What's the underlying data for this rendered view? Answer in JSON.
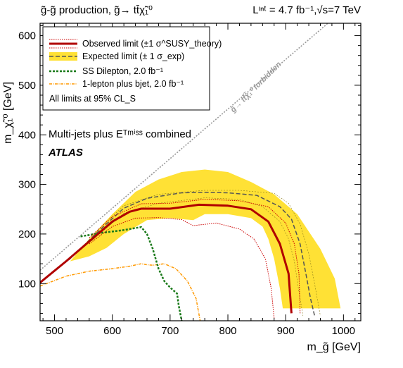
{
  "header": {
    "process": "g̃-g̃ production, g̃→ tt̄χ̃₁⁰",
    "lumi": "Lᶦⁿᵗ = 4.7 fb⁻¹,√s=7 TeV"
  },
  "chart_data": {
    "type": "line",
    "xlabel": "m_g̃ [GeV]",
    "ylabel": "m_χ̃₁⁰ [GeV]",
    "xlim": [
      475,
      1030
    ],
    "ylim": [
      25,
      625
    ],
    "x_ticks": [
      500,
      600,
      700,
      800,
      900,
      1000
    ],
    "y_ticks": [
      100,
      200,
      300,
      400,
      500,
      600
    ],
    "annotations": {
      "analysis": "Multi-jets plus Eᵀᵐⁱˢˢ combined",
      "experiment": "ATLAS",
      "forbidden_label": "g̃→ tt̄χ̃₁⁰ forbidden"
    },
    "legend": {
      "placement": "top-left",
      "entries": [
        {
          "label": "Observed limit (±1 σ^SUSY_theory)",
          "style": "observed"
        },
        {
          "label": "Expected limit (± 1 σ_exp)",
          "style": "expected"
        },
        {
          "label": "SS Dilepton, 2.0 fb⁻¹",
          "style": "ssdilepton"
        },
        {
          "label": "1-lepton plus bjet, 2.0 fb⁻¹",
          "style": "onelepton"
        },
        {
          "label": "All limits at 95% CL_S",
          "style": "none"
        }
      ]
    },
    "forbidden_line": {
      "x": [
        475,
        1030
      ],
      "y": [
        127,
        682
      ]
    },
    "band_upper": {
      "x": [
        527,
        560,
        600,
        640,
        680,
        720,
        760,
        800,
        840,
        880,
        920,
        960,
        985,
        995
      ],
      "y": [
        145,
        190,
        240,
        285,
        310,
        325,
        330,
        325,
        305,
        280,
        240,
        170,
        110,
        50
      ]
    },
    "band_lower": {
      "x": [
        895,
        890,
        880,
        870,
        860,
        840,
        800,
        760,
        740,
        700,
        660,
        620,
        590,
        560
      ],
      "y": [
        50,
        90,
        150,
        190,
        215,
        232,
        240,
        240,
        228,
        232,
        228,
        200,
        172,
        155
      ]
    },
    "series": [
      {
        "name": "Observed limit (±1 σ^SUSY_theory)",
        "style": "observed",
        "x": [
          475,
          520,
          560,
          600,
          630,
          650,
          700,
          750,
          800,
          840,
          870,
          890,
          905,
          910
        ],
        "y": [
          102,
          145,
          185,
          225,
          245,
          251,
          251,
          259,
          257,
          250,
          225,
          180,
          120,
          40
        ]
      },
      {
        "name": "Observed +1σ",
        "style": "obs_theory",
        "x": [
          560,
          600,
          650,
          700,
          760,
          820,
          870,
          900,
          915,
          923,
          925
        ],
        "y": [
          192,
          235,
          261,
          262,
          270,
          267,
          255,
          222,
          180,
          120,
          40
        ]
      },
      {
        "name": "Observed -1σ",
        "style": "obs_theory",
        "x": [
          560,
          600,
          640,
          680,
          720,
          740,
          780,
          820,
          845,
          865,
          875,
          880
        ],
        "y": [
          180,
          215,
          232,
          233,
          229,
          217,
          222,
          210,
          190,
          150,
          90,
          30
        ]
      },
      {
        "name": "Expected limit (± 1 σ_exp)",
        "style": "expected",
        "x": [
          525,
          580,
          620,
          660,
          720,
          760,
          800,
          850,
          890,
          910,
          925,
          935,
          943,
          950
        ],
        "y": [
          148,
          210,
          252,
          272,
          283,
          284,
          283,
          278,
          255,
          230,
          180,
          120,
          70,
          35
        ]
      },
      {
        "name": "Expected -1σ",
        "style": "exp_band",
        "x": [
          560,
          620,
          680,
          760,
          820,
          860,
          890,
          905,
          915,
          922,
          930
        ],
        "y": [
          182,
          242,
          262,
          273,
          270,
          255,
          225,
          190,
          145,
          90,
          35
        ]
      },
      {
        "name": "Expected +1σ",
        "style": "exp_band",
        "x": [
          560,
          620,
          680,
          760,
          820,
          880,
          905,
          925,
          940,
          950,
          960
        ],
        "y": [
          192,
          257,
          280,
          288,
          288,
          282,
          262,
          220,
          160,
          100,
          35
        ]
      },
      {
        "name": "SS Dilepton, 2.0 fb⁻¹",
        "style": "ssdilepton",
        "x": [
          545,
          580,
          620,
          650,
          660,
          670,
          680,
          690,
          700,
          712,
          715,
          720
        ],
        "y": [
          195,
          202,
          208,
          214,
          200,
          170,
          130,
          105,
          92,
          80,
          55,
          25
        ]
      },
      {
        "name": "1-lepton plus bjet, 2.0 fb⁻¹",
        "style": "onelepton",
        "x": [
          475,
          520,
          560,
          600,
          630,
          650,
          660,
          670,
          690,
          710,
          730,
          745,
          752
        ],
        "y": [
          95,
          115,
          125,
          130,
          135,
          140,
          138,
          137,
          140,
          130,
          105,
          70,
          25
        ]
      }
    ]
  }
}
